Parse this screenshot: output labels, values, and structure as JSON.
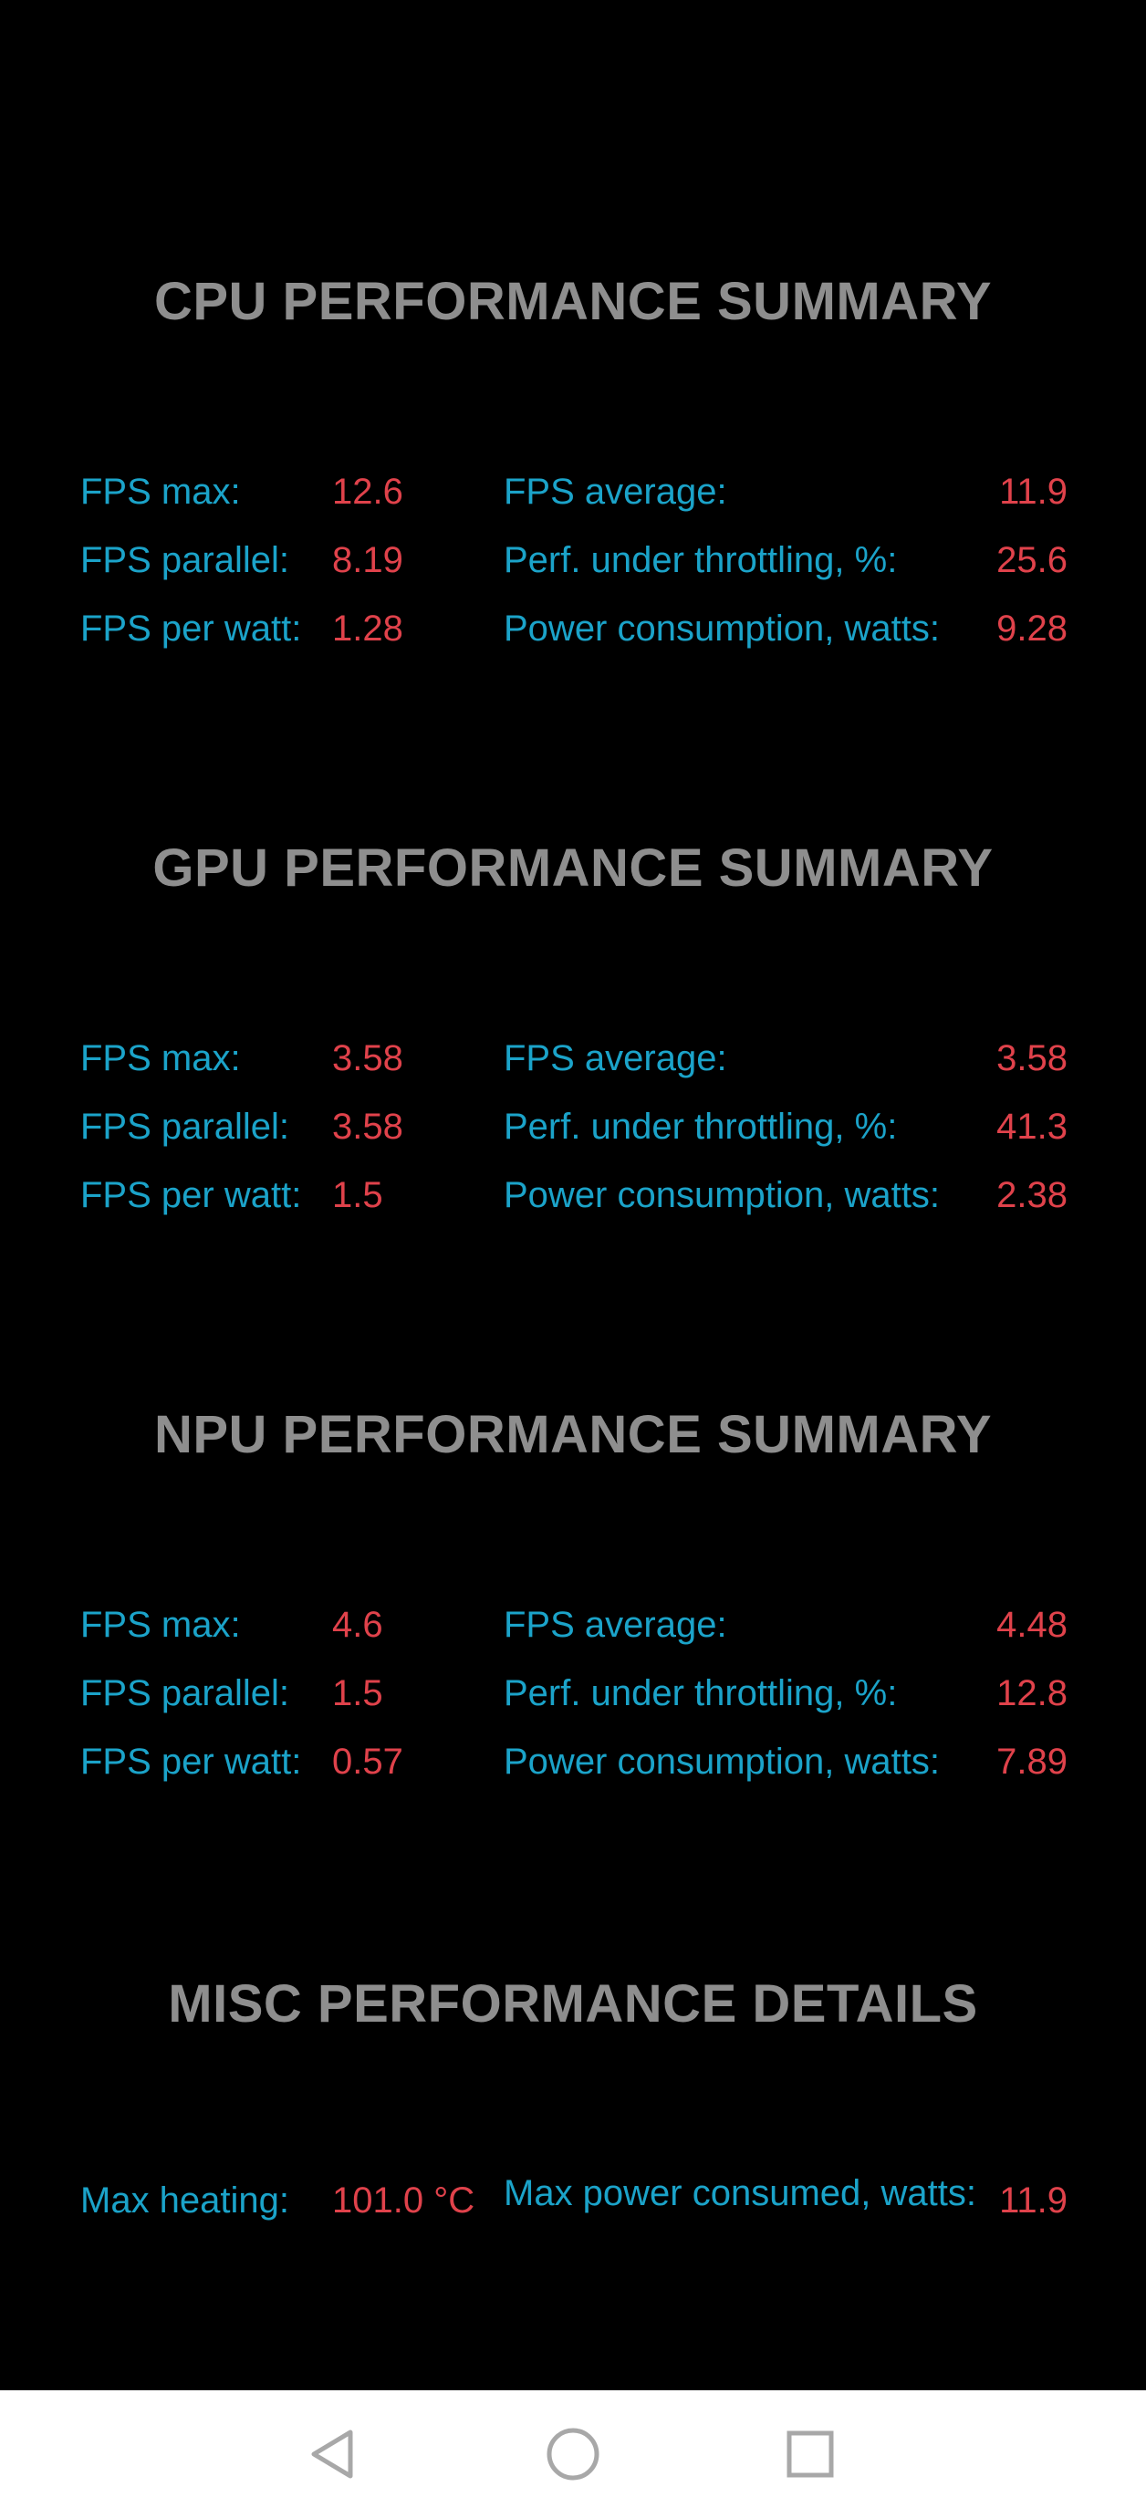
{
  "sections": [
    {
      "title": "CPU PERFORMANCE SUMMARY",
      "rows": [
        {
          "l1": "FPS max:",
          "v1": "12.6",
          "l2": "FPS average:",
          "v2": "11.9"
        },
        {
          "l1": "FPS parallel:",
          "v1": "8.19",
          "l2": "Perf. under throttling, %:",
          "v2": "25.6"
        },
        {
          "l1": "FPS per watt:",
          "v1": "1.28",
          "l2": "Power consumption, watts:",
          "v2": "9.28"
        }
      ]
    },
    {
      "title": "GPU PERFORMANCE SUMMARY",
      "rows": [
        {
          "l1": "FPS max:",
          "v1": "3.58",
          "l2": "FPS average:",
          "v2": "3.58"
        },
        {
          "l1": "FPS parallel:",
          "v1": "3.58",
          "l2": "Perf. under throttling, %:",
          "v2": "41.3"
        },
        {
          "l1": "FPS per watt:",
          "v1": "1.5",
          "l2": "Power consumption, watts:",
          "v2": "2.38"
        }
      ]
    },
    {
      "title": "NPU PERFORMANCE SUMMARY",
      "rows": [
        {
          "l1": "FPS max:",
          "v1": "4.6",
          "l2": "FPS average:",
          "v2": "4.48"
        },
        {
          "l1": "FPS parallel:",
          "v1": "1.5",
          "l2": "Perf. under throttling, %:",
          "v2": "12.8"
        },
        {
          "l1": "FPS per watt:",
          "v1": "0.57",
          "l2": "Power consumption, watts:",
          "v2": "7.89"
        }
      ]
    }
  ],
  "misc": {
    "title": "MISC PERFORMANCE DETAILS",
    "max_heating_label": "Max heating:",
    "max_heating_value": "101.0 °C",
    "max_power_label": "Max power consumed, watts:",
    "max_power_value": "11.9"
  },
  "navbar": {
    "back_icon": "back-triangle-icon",
    "home_icon": "home-circle-icon",
    "recents_icon": "recents-square-icon"
  }
}
